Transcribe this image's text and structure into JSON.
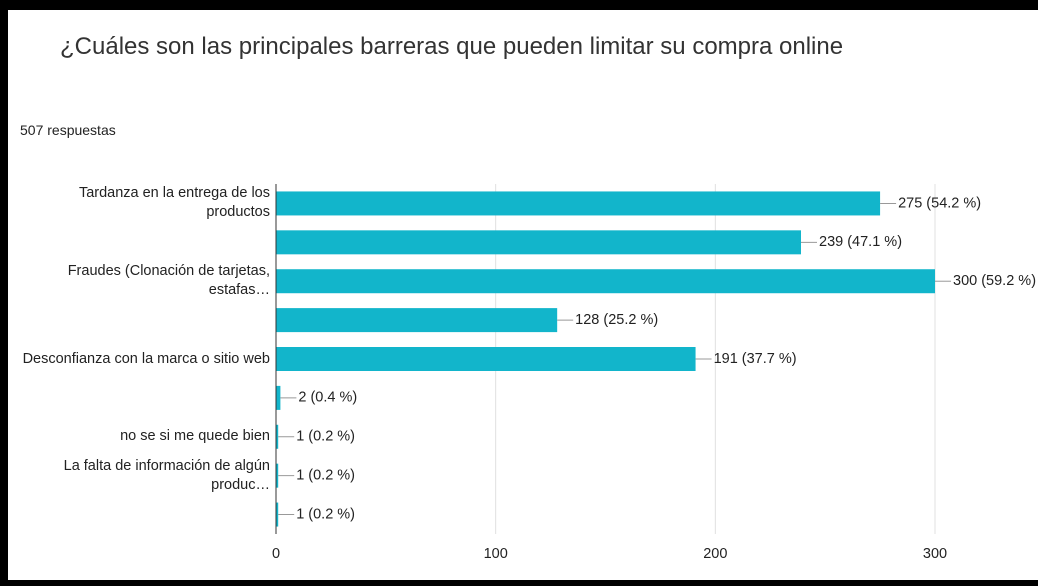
{
  "chart_data": {
    "type": "bar",
    "orientation": "horizontal",
    "title": "¿Cuáles son las principales barreras que pueden limitar su compra online",
    "subtitle": "507 respuestas",
    "categories": [
      "Tardanza en la entrega de los productos",
      null,
      "Fraudes (Clonación de tarjetas, estafas…",
      null,
      "Desconfianza con la marca o sitio web",
      null,
      "no se si me quede bien",
      "La falta de información de algún produc…",
      null
    ],
    "values": [
      275,
      239,
      300,
      128,
      191,
      2,
      1,
      1,
      1
    ],
    "value_labels": [
      "275 (54.2 %)",
      "239 (47.1 %)",
      "300 (59.2 %)",
      "128 (25.2 %)",
      "191 (37.7 %)",
      "2 (0.4 %)",
      "1 (0.2 %)",
      "1 (0.2 %)",
      "1 (0.2 %)"
    ],
    "color": "#12b5cb",
    "xlim": [
      0,
      300
    ],
    "xticks": [
      0,
      100,
      200,
      300
    ],
    "grid": true
  }
}
